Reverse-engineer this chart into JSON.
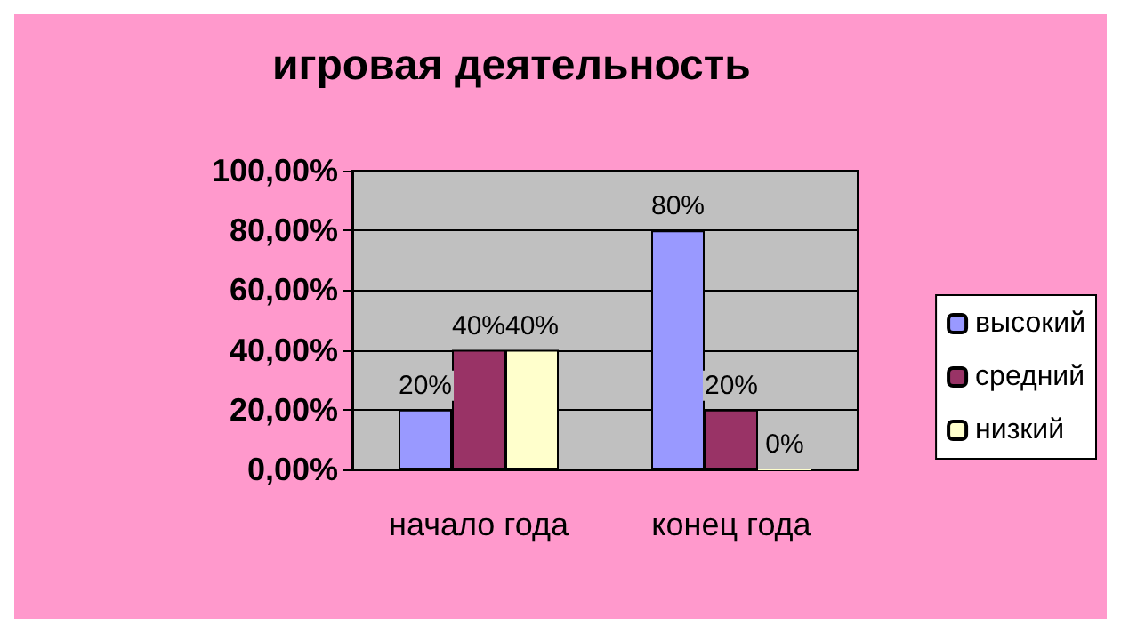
{
  "chart_data": {
    "type": "bar",
    "title": "игровая деятельность",
    "categories": [
      "начало года",
      "конец года"
    ],
    "series": [
      {
        "name": "высокий",
        "color": "#9999ff",
        "values": [
          20,
          80
        ],
        "value_labels": [
          "20%",
          "80%"
        ]
      },
      {
        "name": "средний",
        "color": "#993366",
        "values": [
          40,
          20
        ],
        "value_labels": [
          "40%",
          "20%"
        ]
      },
      {
        "name": "низкий",
        "color": "#ffffcc",
        "values": [
          40,
          0
        ],
        "value_labels": [
          "40%",
          "0%"
        ]
      }
    ],
    "ylim": [
      0,
      100
    ],
    "yticks": [
      {
        "value": 0,
        "label": "0,00%"
      },
      {
        "value": 20,
        "label": "20,00%"
      },
      {
        "value": 40,
        "label": "40,00%"
      },
      {
        "value": 60,
        "label": "60,00%"
      },
      {
        "value": 80,
        "label": "80,00%"
      },
      {
        "value": 100,
        "label": "100,00%"
      }
    ],
    "grid": "y",
    "legend": "right"
  }
}
